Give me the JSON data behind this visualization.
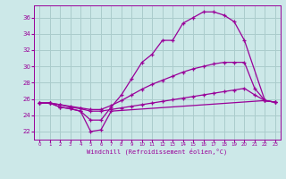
{
  "background_color": "#cce8e8",
  "grid_color": "#aacccc",
  "line_color": "#990099",
  "xlim": [
    -0.5,
    23.5
  ],
  "ylim": [
    21.0,
    37.5
  ],
  "xticks": [
    0,
    1,
    2,
    3,
    4,
    5,
    6,
    7,
    8,
    9,
    10,
    11,
    12,
    13,
    14,
    15,
    16,
    17,
    18,
    19,
    20,
    21,
    22,
    23
  ],
  "yticks": [
    22,
    24,
    26,
    28,
    30,
    32,
    34,
    36
  ],
  "xlabel": "Windchill (Refroidissement éolien,°C)",
  "curves": [
    {
      "x": [
        0,
        1,
        2,
        3,
        4,
        5,
        6,
        7,
        22,
        23
      ],
      "y": [
        25.5,
        25.5,
        25.0,
        24.8,
        24.5,
        22.0,
        22.2,
        24.5,
        25.8,
        25.6
      ]
    },
    {
      "x": [
        0,
        1,
        2,
        3,
        4,
        5,
        6,
        7,
        8,
        9,
        10,
        11,
        12,
        13,
        14,
        15,
        16,
        17,
        18,
        19,
        20,
        22,
        23
      ],
      "y": [
        25.5,
        25.5,
        25.0,
        24.8,
        24.5,
        23.4,
        23.4,
        25.0,
        26.5,
        28.5,
        30.5,
        31.5,
        33.2,
        33.2,
        35.3,
        36.0,
        36.7,
        36.7,
        36.3,
        35.5,
        33.2,
        25.8,
        25.6
      ]
    },
    {
      "x": [
        0,
        1,
        2,
        3,
        4,
        5,
        6,
        7,
        8,
        9,
        10,
        11,
        12,
        13,
        14,
        15,
        16,
        17,
        18,
        19,
        20,
        21,
        22,
        23
      ],
      "y": [
        25.5,
        25.5,
        25.3,
        25.1,
        24.9,
        24.7,
        24.7,
        25.2,
        25.8,
        26.5,
        27.2,
        27.8,
        28.3,
        28.8,
        29.3,
        29.7,
        30.0,
        30.3,
        30.5,
        30.5,
        30.5,
        27.3,
        25.8,
        25.6
      ]
    },
    {
      "x": [
        0,
        1,
        2,
        3,
        4,
        5,
        6,
        7,
        8,
        9,
        10,
        11,
        12,
        13,
        14,
        15,
        16,
        17,
        18,
        19,
        20,
        21,
        22,
        23
      ],
      "y": [
        25.5,
        25.5,
        25.3,
        25.0,
        24.8,
        24.5,
        24.5,
        24.7,
        24.9,
        25.1,
        25.3,
        25.5,
        25.7,
        25.9,
        26.1,
        26.3,
        26.5,
        26.7,
        26.9,
        27.1,
        27.3,
        26.5,
        25.8,
        25.6
      ]
    }
  ]
}
